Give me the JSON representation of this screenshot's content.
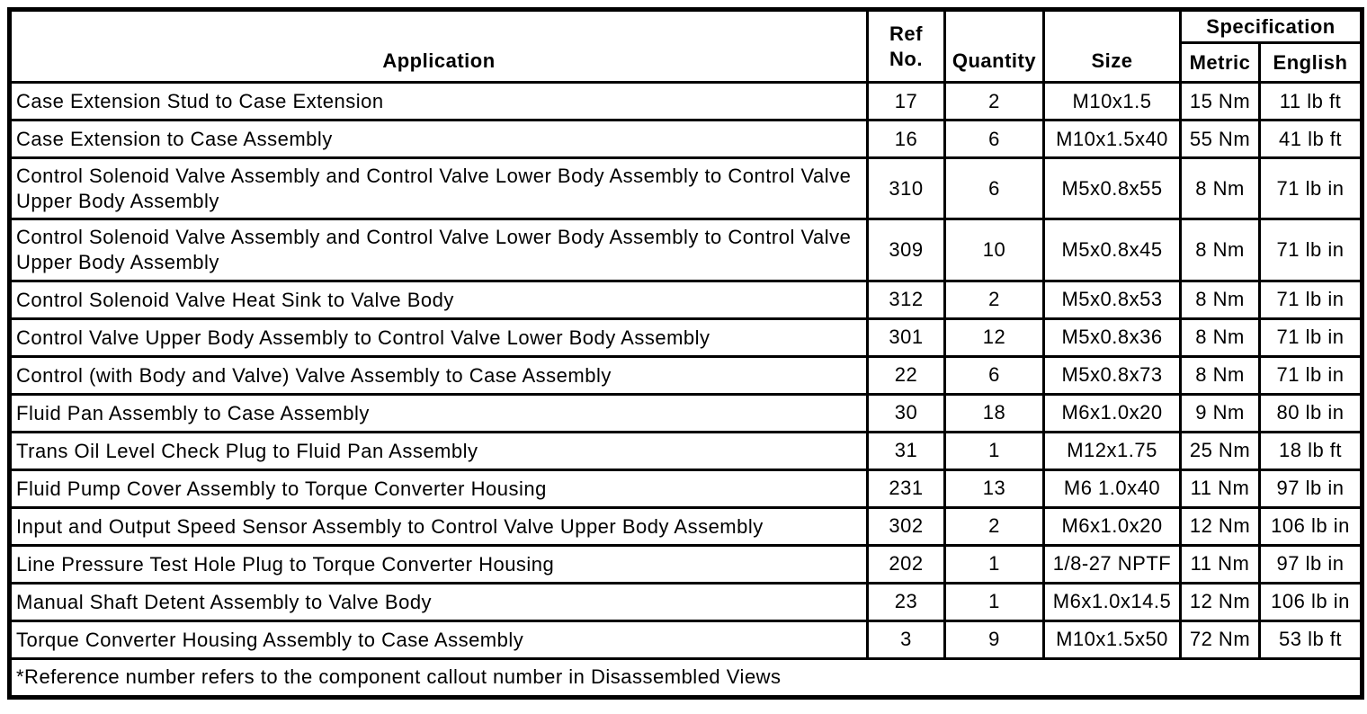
{
  "document": {
    "type": "fastener-tightening-specifications-table"
  },
  "colors": {
    "border": "#000000",
    "background": "#ffffff",
    "text": "#000000"
  },
  "table": {
    "headers": {
      "application": "Application",
      "ref_no": "Ref No.",
      "quantity": "Quantity",
      "size": "Size",
      "specification": "Specification",
      "metric": "Metric",
      "english": "English"
    },
    "rows": [
      {
        "application": "Case Extension Stud to Case Extension",
        "ref_no": "17",
        "quantity": "2",
        "size": "M10x1.5",
        "metric": "15 Nm",
        "english": "11 lb ft"
      },
      {
        "application": "Case Extension to Case Assembly",
        "ref_no": "16",
        "quantity": "6",
        "size": "M10x1.5x40",
        "metric": "55 Nm",
        "english": "41 lb ft"
      },
      {
        "application": "Control Solenoid Valve Assembly and Control Valve Lower Body Assembly to Control Valve Upper Body Assembly",
        "ref_no": "310",
        "quantity": "6",
        "size": "M5x0.8x55",
        "metric": "8 Nm",
        "english": "71 lb in"
      },
      {
        "application": "Control Solenoid Valve Assembly and Control Valve Lower Body Assembly to Control Valve Upper Body Assembly",
        "ref_no": "309",
        "quantity": "10",
        "size": "M5x0.8x45",
        "metric": "8 Nm",
        "english": "71 lb in"
      },
      {
        "application": "Control Solenoid Valve Heat Sink to Valve Body",
        "ref_no": "312",
        "quantity": "2",
        "size": "M5x0.8x53",
        "metric": "8 Nm",
        "english": "71 lb in"
      },
      {
        "application": "Control Valve Upper Body Assembly to Control Valve Lower Body Assembly",
        "ref_no": "301",
        "quantity": "12",
        "size": "M5x0.8x36",
        "metric": "8 Nm",
        "english": "71 lb in"
      },
      {
        "application": "Control (with Body and Valve) Valve Assembly to Case Assembly",
        "ref_no": "22",
        "quantity": "6",
        "size": "M5x0.8x73",
        "metric": "8 Nm",
        "english": "71 lb in"
      },
      {
        "application": "Fluid Pan Assembly to Case Assembly",
        "ref_no": "30",
        "quantity": "18",
        "size": "M6x1.0x20",
        "metric": "9 Nm",
        "english": "80 lb in"
      },
      {
        "application": "Trans Oil Level Check Plug to Fluid Pan Assembly",
        "ref_no": "31",
        "quantity": "1",
        "size": "M12x1.75",
        "metric": "25 Nm",
        "english": "18 lb ft"
      },
      {
        "application": "Fluid Pump Cover Assembly to Torque Converter Housing",
        "ref_no": "231",
        "quantity": "13",
        "size": "M6 1.0x40",
        "metric": "11 Nm",
        "english": "97 lb in"
      },
      {
        "application": "Input and Output Speed Sensor Assembly to Control Valve Upper Body Assembly",
        "ref_no": "302",
        "quantity": "2",
        "size": "M6x1.0x20",
        "metric": "12 Nm",
        "english": "106 lb in"
      },
      {
        "application": "Line Pressure Test Hole Plug to Torque Converter Housing",
        "ref_no": "202",
        "quantity": "1",
        "size": "1/8-27 NPTF",
        "metric": "11 Nm",
        "english": "97 lb in"
      },
      {
        "application": "Manual Shaft Detent Assembly to Valve Body",
        "ref_no": "23",
        "quantity": "1",
        "size": "M6x1.0x14.5",
        "metric": "12 Nm",
        "english": "106 lb in"
      },
      {
        "application": "Torque Converter Housing Assembly to Case Assembly",
        "ref_no": "3",
        "quantity": "9",
        "size": "M10x1.5x50",
        "metric": "72 Nm",
        "english": "53 lb ft"
      }
    ],
    "footnote": "*Reference number refers to the component callout number in Disassembled Views"
  }
}
